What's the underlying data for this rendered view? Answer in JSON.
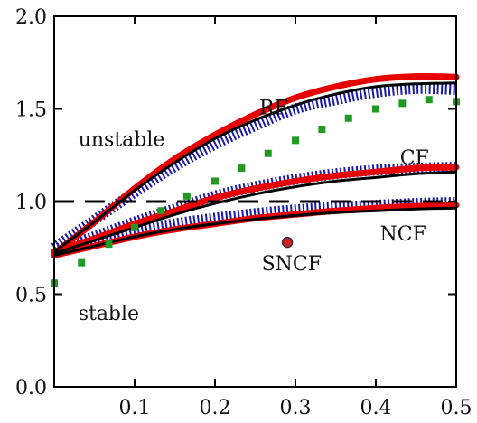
{
  "chart_data": {
    "type": "line",
    "title": "",
    "xlabel": "",
    "ylabel": "",
    "xlim": [
      0.0,
      0.5
    ],
    "ylim": [
      0.0,
      2.0
    ],
    "xticks": [
      0.1,
      0.2,
      0.3,
      0.4,
      0.5
    ],
    "xtick_labels": [
      "0.1",
      "0.2",
      "0.3",
      "0.4",
      "0.5"
    ],
    "yticks": [
      0.0,
      0.5,
      1.0,
      1.5,
      2.0
    ],
    "ytick_labels": [
      "0.0",
      "0.5",
      "1.0",
      "1.5",
      "2.0"
    ],
    "grid": false,
    "reference_line": {
      "y": 1.0,
      "style": "dashed",
      "color": "#000000"
    },
    "annotations": [
      {
        "id": "rf",
        "text": "RF",
        "x": 0.255,
        "y": 1.47
      },
      {
        "id": "cf",
        "text": "CF",
        "x": 0.43,
        "y": 1.2
      },
      {
        "id": "ncf",
        "text": "NCF",
        "x": 0.405,
        "y": 0.79
      },
      {
        "id": "sncf",
        "text": "SNCF",
        "x": 0.258,
        "y": 0.63
      },
      {
        "id": "unstable",
        "text": "unstable",
        "x": 0.03,
        "y": 1.3
      },
      {
        "id": "stable",
        "text": "stable",
        "x": 0.03,
        "y": 0.36
      }
    ],
    "series": [
      {
        "style": "red-thick",
        "color": "#e60000",
        "x": [
          0.0,
          0.05,
          0.1,
          0.15,
          0.2,
          0.25,
          0.3,
          0.35,
          0.4,
          0.45,
          0.5
        ],
        "y": [
          0.72,
          0.89,
          1.07,
          1.23,
          1.36,
          1.47,
          1.56,
          1.62,
          1.66,
          1.675,
          1.672
        ]
      },
      {
        "style": "blue-hatched",
        "color": "#1a1aaa",
        "x": [
          0.0,
          0.05,
          0.1,
          0.15,
          0.2,
          0.25,
          0.3,
          0.35,
          0.4,
          0.45,
          0.5
        ],
        "y": [
          0.75,
          0.9,
          1.05,
          1.19,
          1.31,
          1.41,
          1.5,
          1.55,
          1.59,
          1.61,
          1.605
        ]
      },
      {
        "style": "black",
        "color": "#000000",
        "x": [
          0.0,
          0.05,
          0.1,
          0.15,
          0.2,
          0.25,
          0.3,
          0.35,
          0.4,
          0.45,
          0.5
        ],
        "y": [
          0.73,
          0.89,
          1.06,
          1.21,
          1.34,
          1.44,
          1.52,
          1.58,
          1.62,
          1.635,
          1.64
        ]
      },
      {
        "style": "green-squares",
        "color": "#229922",
        "x": [
          0.0,
          0.034,
          0.068,
          0.1,
          0.133,
          0.165,
          0.2,
          0.233,
          0.266,
          0.3,
          0.333,
          0.366,
          0.4,
          0.433,
          0.466,
          0.5
        ],
        "y": [
          0.56,
          0.67,
          0.77,
          0.86,
          0.95,
          1.03,
          1.11,
          1.18,
          1.26,
          1.33,
          1.39,
          1.45,
          1.5,
          1.53,
          1.55,
          1.54
        ]
      },
      {
        "style": "red-thick",
        "color": "#e60000",
        "x": [
          0.0,
          0.05,
          0.1,
          0.15,
          0.2,
          0.25,
          0.3,
          0.35,
          0.4,
          0.45,
          0.5
        ],
        "y": [
          0.73,
          0.8,
          0.88,
          0.95,
          1.02,
          1.07,
          1.11,
          1.14,
          1.16,
          1.18,
          1.185
        ]
      },
      {
        "style": "blue-hatched",
        "color": "#1a1aaa",
        "x": [
          0.0,
          0.05,
          0.1,
          0.15,
          0.2,
          0.25,
          0.3,
          0.35,
          0.4,
          0.45,
          0.5
        ],
        "y": [
          0.74,
          0.81,
          0.89,
          0.96,
          1.03,
          1.08,
          1.12,
          1.15,
          1.17,
          1.18,
          1.185
        ]
      },
      {
        "style": "black",
        "color": "#000000",
        "x": [
          0.0,
          0.05,
          0.1,
          0.15,
          0.2,
          0.25,
          0.3,
          0.35,
          0.4,
          0.45,
          0.5
        ],
        "y": [
          0.72,
          0.79,
          0.86,
          0.93,
          0.99,
          1.04,
          1.08,
          1.11,
          1.13,
          1.15,
          1.16
        ]
      },
      {
        "style": "red-thick",
        "color": "#e60000",
        "x": [
          0.0,
          0.05,
          0.1,
          0.15,
          0.2,
          0.25,
          0.3,
          0.35,
          0.4,
          0.45,
          0.5
        ],
        "y": [
          0.71,
          0.76,
          0.81,
          0.85,
          0.88,
          0.91,
          0.93,
          0.95,
          0.965,
          0.975,
          0.98
        ]
      },
      {
        "style": "blue-hatched",
        "color": "#1a1aaa",
        "x": [
          0.0,
          0.05,
          0.1,
          0.15,
          0.2,
          0.25,
          0.3,
          0.35,
          0.4,
          0.45,
          0.5
        ],
        "y": [
          0.74,
          0.79,
          0.84,
          0.88,
          0.91,
          0.935,
          0.955,
          0.97,
          0.98,
          0.99,
          0.995
        ]
      },
      {
        "style": "black",
        "color": "#000000",
        "x": [
          0.0,
          0.05,
          0.1,
          0.15,
          0.2,
          0.25,
          0.3,
          0.35,
          0.4,
          0.45,
          0.5
        ],
        "y": [
          0.71,
          0.76,
          0.81,
          0.85,
          0.88,
          0.905,
          0.925,
          0.94,
          0.95,
          0.96,
          0.965
        ]
      }
    ],
    "points": [
      {
        "x": 0.29,
        "y": 0.78,
        "color": "#d42020"
      }
    ]
  }
}
